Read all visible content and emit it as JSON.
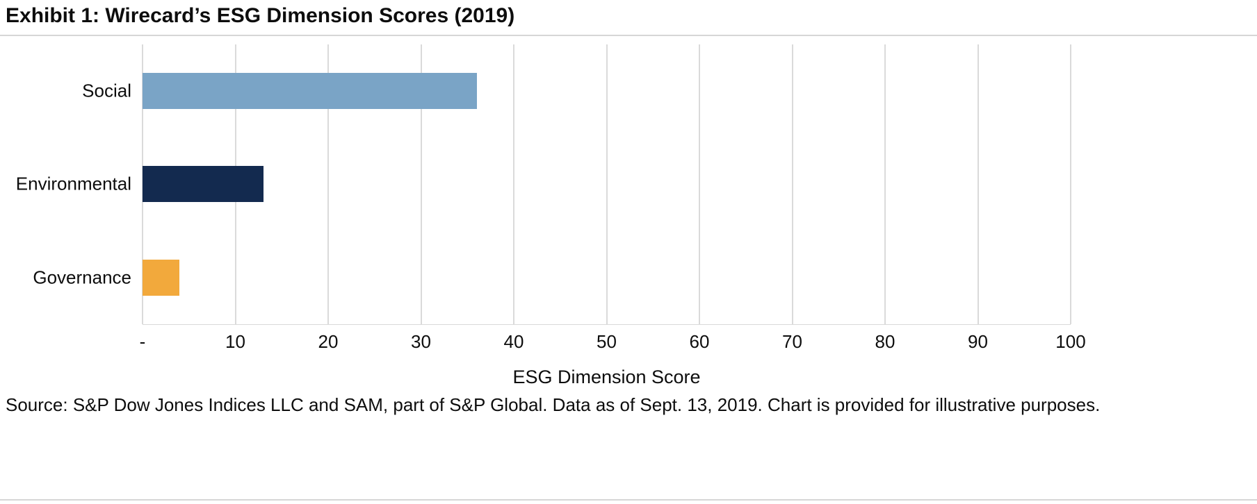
{
  "title": "Exhibit 1: Wirecard’s ESG Dimension Scores (2019)",
  "source_line": "Source: S&P Dow Jones Indices LLC and SAM, part of S&P Global. Data as of Sept. 13, 2019. Chart is provided for illustrative purposes.",
  "chart_data": {
    "type": "bar",
    "orientation": "horizontal",
    "title": "Exhibit 1: Wirecard’s ESG Dimension Scores (2019)",
    "categories": [
      "Social",
      "Environmental",
      "Governance"
    ],
    "values": [
      36,
      13,
      4
    ],
    "colors": [
      "#7AA4C6",
      "#132A4F",
      "#F2A93C"
    ],
    "xlabel": "ESG Dimension Score",
    "ylabel": "",
    "xlim": [
      0,
      100
    ],
    "xticks": [
      0,
      10,
      20,
      30,
      40,
      50,
      60,
      70,
      80,
      90,
      100
    ],
    "xtick_labels": [
      "-",
      "10",
      "20",
      "30",
      "40",
      "50",
      "60",
      "70",
      "80",
      "90",
      "100"
    ],
    "grid": true,
    "gridline_color": "#dadada",
    "legend": "none"
  }
}
